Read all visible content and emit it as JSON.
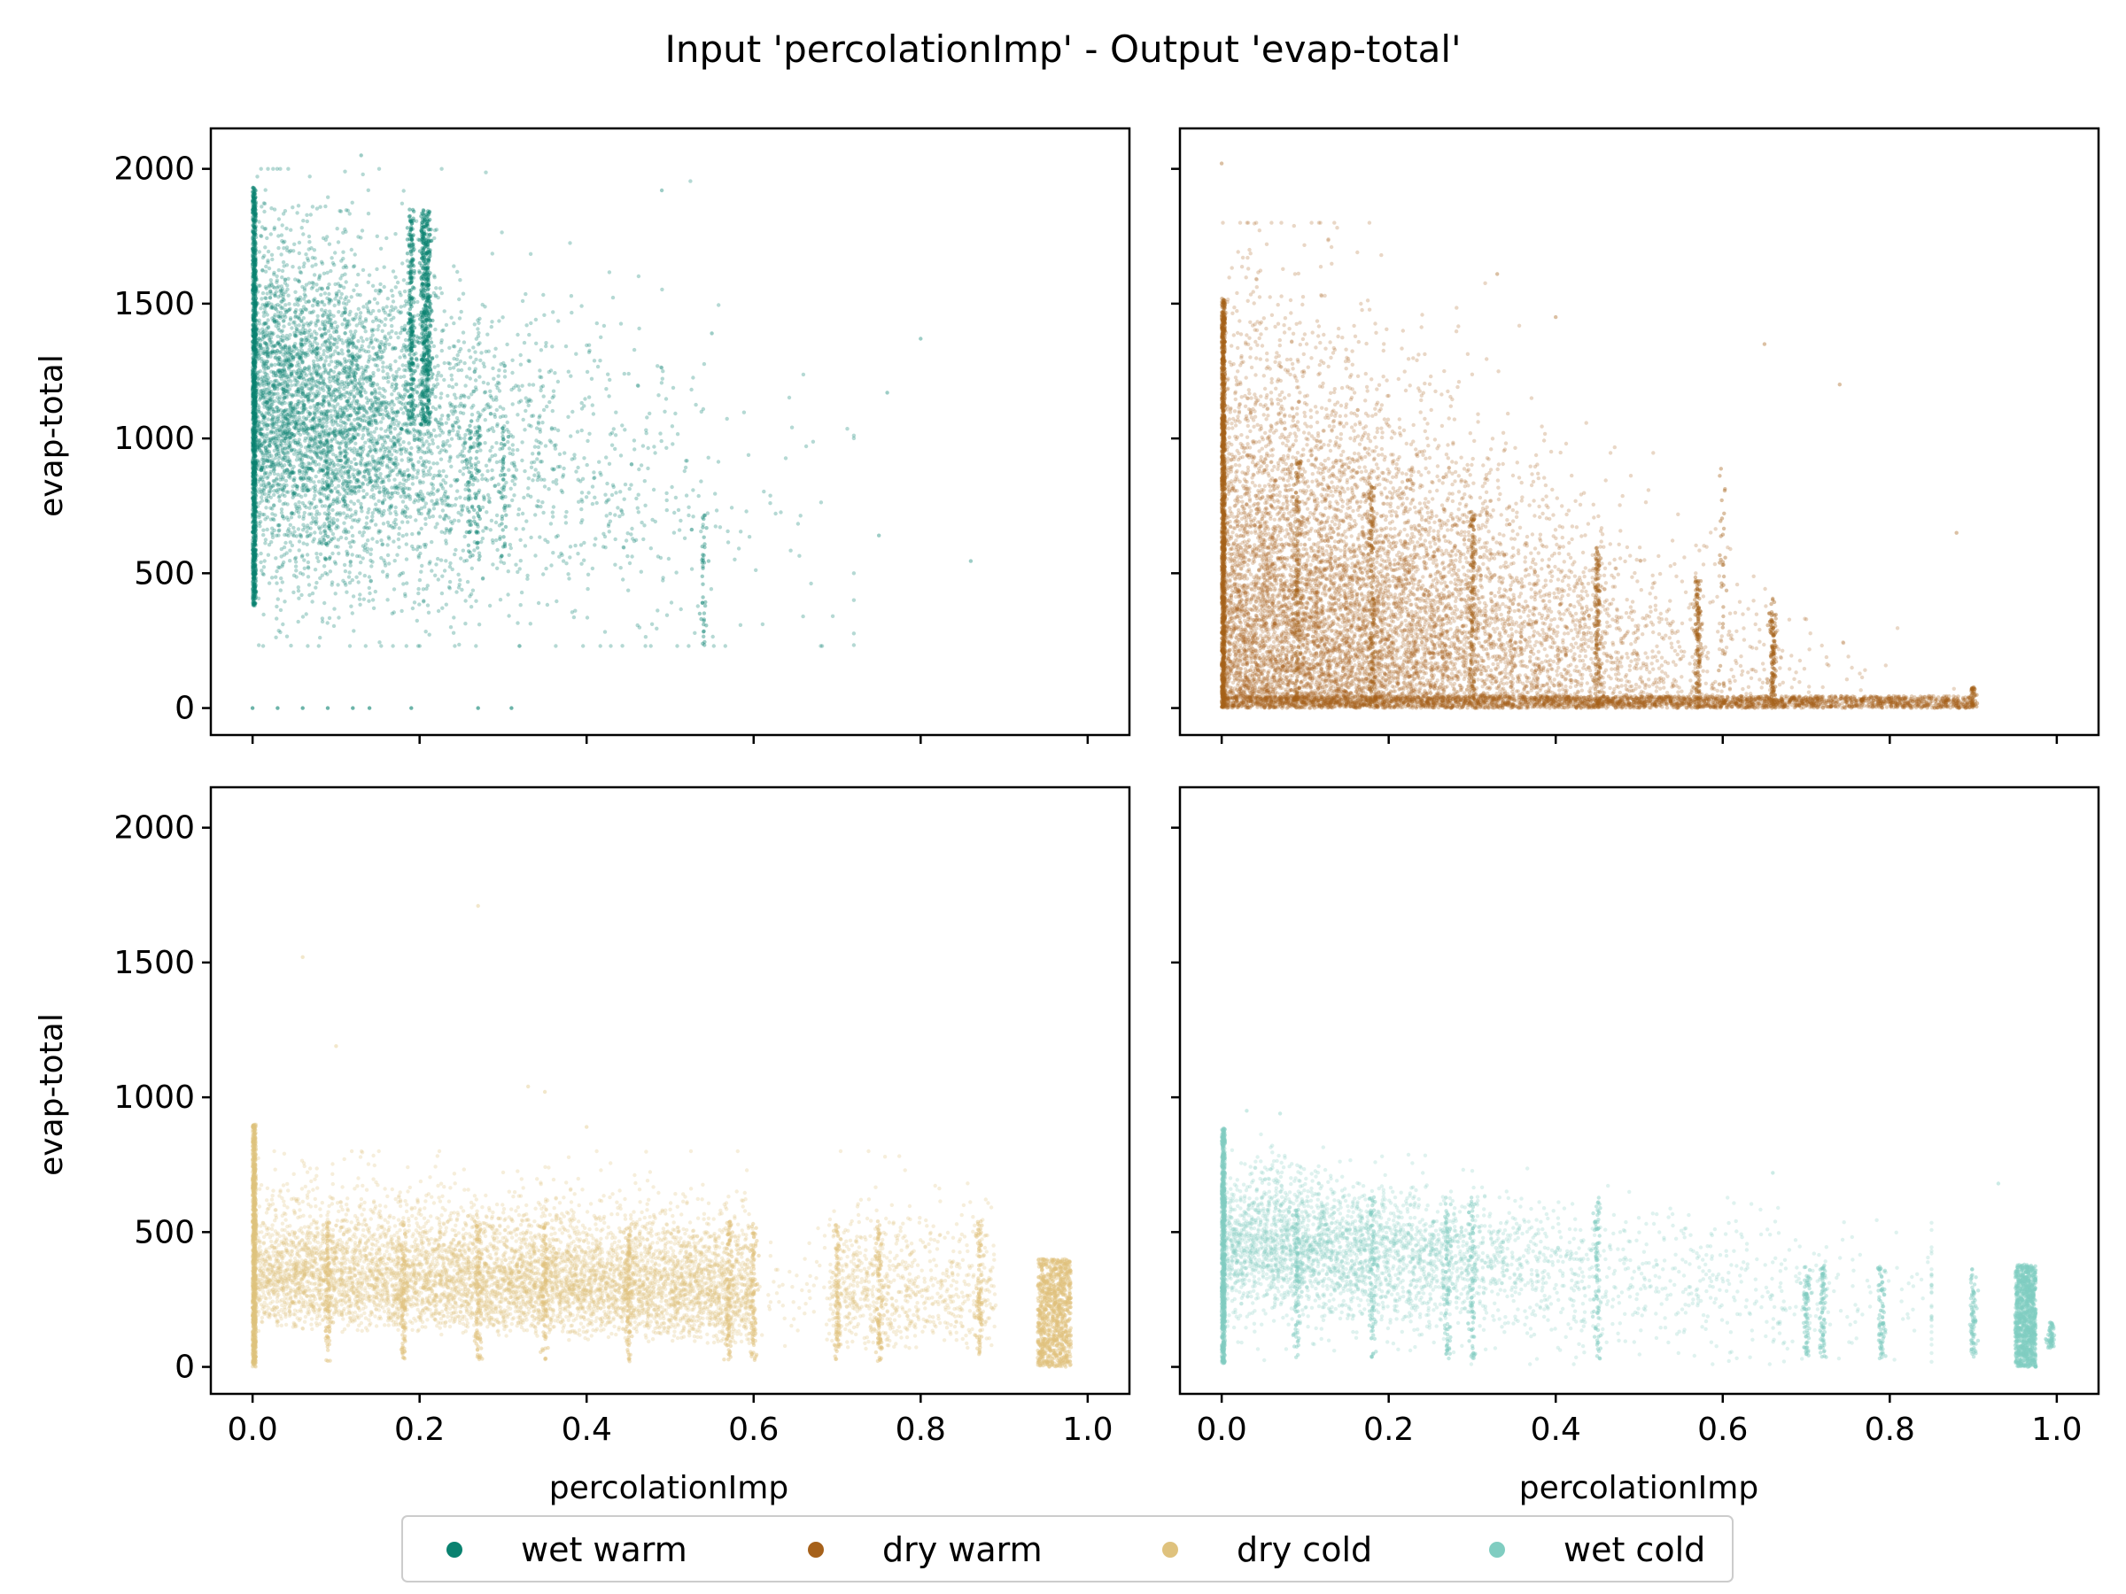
{
  "chart_data": {
    "type": "scatter",
    "title": "Input 'percolationImp' - Output 'evap-total'",
    "xlabel": "percolationImp",
    "ylabel": "evap-total",
    "xlim": [
      -0.05,
      1.05
    ],
    "ylim": [
      -100,
      2150
    ],
    "xticks": [
      0.0,
      0.2,
      0.4,
      0.6,
      0.8,
      1.0
    ],
    "xtick_labels": [
      "0.0",
      "0.2",
      "0.4",
      "0.6",
      "0.8",
      "1.0"
    ],
    "yticks": [
      0,
      500,
      1000,
      1500,
      2000
    ],
    "ytick_labels": [
      "0",
      "500",
      "1000",
      "1500",
      "2000"
    ],
    "grid": false,
    "legend_position": "bottom-center",
    "legend": [
      "wet warm",
      "dry warm",
      "dry cold",
      "wet cold"
    ],
    "colors": {
      "wet warm": "#0a8270",
      "dry warm": "#a6611a",
      "dry cold": "#dfc27d",
      "wet cold": "#80cdc1"
    },
    "panels": [
      {
        "series": "wet warm",
        "position": "top-left",
        "approx_points": 9000,
        "description_values": {
          "x_range": [
            0.0,
            0.87
          ],
          "y_range": [
            0,
            2050
          ],
          "dense_x_range": [
            0.0,
            0.35
          ],
          "dense_y_range": [
            400,
            1600
          ],
          "notable_columns_x": [
            0.0,
            0.19,
            0.21
          ],
          "zero_cluster_x": [
            0.0,
            0.03,
            0.06,
            0.09,
            0.12,
            0.14,
            0.19,
            0.27,
            0.31
          ]
        }
      },
      {
        "series": "dry warm",
        "position": "top-right",
        "approx_points": 20000,
        "description_values": {
          "x_range": [
            0.0,
            0.9
          ],
          "y_range": [
            0,
            2020
          ],
          "dense_x_range": [
            0.0,
            0.5
          ],
          "dense_y_range": [
            0,
            1000
          ],
          "notable_columns_x": [
            0.0,
            0.09,
            0.18,
            0.3,
            0.45,
            0.57,
            0.6,
            0.66,
            0.9
          ]
        }
      },
      {
        "series": "dry cold",
        "position": "bottom-left",
        "approx_points": 12000,
        "description_values": {
          "x_range": [
            0.0,
            0.97
          ],
          "y_range": [
            0,
            1710
          ],
          "dense_x_range": [
            0.0,
            0.6
          ],
          "dense_y_range": [
            0,
            600
          ],
          "notable_columns_x": [
            0.0,
            0.18,
            0.27,
            0.45,
            0.57,
            0.6,
            0.7,
            0.75,
            0.87,
            0.95,
            0.97
          ]
        }
      },
      {
        "series": "wet cold",
        "position": "bottom-right",
        "approx_points": 7000,
        "description_values": {
          "x_range": [
            0.0,
            0.99
          ],
          "y_range": [
            0,
            950
          ],
          "dense_x_range": [
            0.0,
            0.35
          ],
          "dense_y_range": [
            200,
            700
          ],
          "notable_columns_x": [
            0.0,
            0.09,
            0.18,
            0.27,
            0.3,
            0.45,
            0.7,
            0.79,
            0.9,
            0.95,
            0.97,
            0.99
          ]
        }
      }
    ]
  }
}
